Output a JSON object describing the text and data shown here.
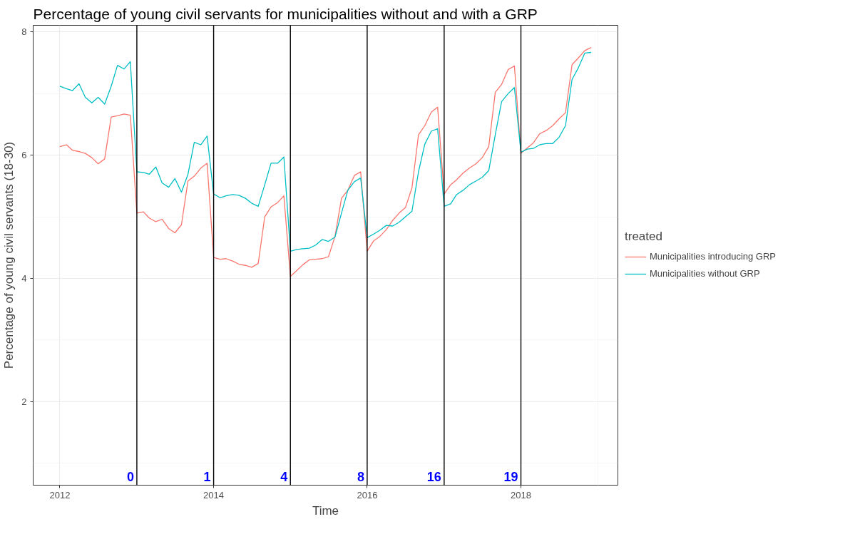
{
  "chart_data": {
    "type": "line",
    "title": "Percentage of young civil servants for municipalities without and with a GRP",
    "xlabel": "Time",
    "ylabel": "Percentage of young civil servants (18-30)",
    "legend_title": "treated",
    "legend": "right",
    "grid": true,
    "x": [
      "2012-01",
      "2012-02",
      "2012-03",
      "2012-04",
      "2012-05",
      "2012-06",
      "2012-07",
      "2012-08",
      "2012-09",
      "2012-10",
      "2012-11",
      "2012-12",
      "2013-01",
      "2013-02",
      "2013-03",
      "2013-04",
      "2013-05",
      "2013-06",
      "2013-07",
      "2013-08",
      "2013-09",
      "2013-10",
      "2013-11",
      "2013-12",
      "2014-01",
      "2014-02",
      "2014-03",
      "2014-04",
      "2014-05",
      "2014-06",
      "2014-07",
      "2014-08",
      "2014-09",
      "2014-10",
      "2014-11",
      "2014-12",
      "2015-01",
      "2015-02",
      "2015-03",
      "2015-04",
      "2015-05",
      "2015-06",
      "2015-07",
      "2015-08",
      "2015-09",
      "2015-10",
      "2015-11",
      "2015-12",
      "2016-01",
      "2016-02",
      "2016-03",
      "2016-04",
      "2016-05",
      "2016-06",
      "2016-07",
      "2016-08",
      "2016-09",
      "2016-10",
      "2016-11",
      "2016-12",
      "2017-01",
      "2017-02",
      "2017-03",
      "2017-04",
      "2017-05",
      "2017-06",
      "2017-07",
      "2017-08",
      "2017-09",
      "2017-10",
      "2017-11",
      "2017-12",
      "2018-01",
      "2018-02",
      "2018-03",
      "2018-04",
      "2018-05",
      "2018-06",
      "2018-07",
      "2018-08",
      "2018-09",
      "2018-10",
      "2018-11",
      "2018-12"
    ],
    "series": [
      {
        "name": "Municipalities introducing GRP",
        "color": "#f8766d",
        "values": [
          6.14,
          6.17,
          6.08,
          6.06,
          6.03,
          5.96,
          5.86,
          5.94,
          6.62,
          6.64,
          6.67,
          6.65,
          5.06,
          5.08,
          4.98,
          4.92,
          4.96,
          4.81,
          4.74,
          4.87,
          5.58,
          5.66,
          5.79,
          5.87,
          4.34,
          4.31,
          4.32,
          4.28,
          4.23,
          4.21,
          4.18,
          4.24,
          5.0,
          5.16,
          5.23,
          5.34,
          4.03,
          4.13,
          4.22,
          4.3,
          4.31,
          4.32,
          4.35,
          4.68,
          5.3,
          5.43,
          5.67,
          5.73,
          4.44,
          4.61,
          4.68,
          4.79,
          4.94,
          5.06,
          5.15,
          5.47,
          6.33,
          6.48,
          6.7,
          6.78,
          5.37,
          5.52,
          5.6,
          5.71,
          5.79,
          5.86,
          5.96,
          6.14,
          7.02,
          7.15,
          7.39,
          7.45,
          6.03,
          6.12,
          6.2,
          6.35,
          6.4,
          6.48,
          6.59,
          6.69,
          7.47,
          7.58,
          7.7,
          7.75
        ]
      },
      {
        "name": "Municipalities without GRP",
        "color": "#00bfc4",
        "values": [
          7.12,
          7.08,
          7.05,
          7.16,
          6.94,
          6.85,
          6.94,
          6.83,
          7.12,
          7.46,
          7.4,
          7.52,
          5.73,
          5.72,
          5.69,
          5.81,
          5.55,
          5.48,
          5.62,
          5.4,
          5.69,
          6.21,
          6.17,
          6.31,
          5.37,
          5.31,
          5.34,
          5.36,
          5.35,
          5.3,
          5.22,
          5.17,
          5.52,
          5.87,
          5.87,
          5.97,
          4.44,
          4.47,
          4.48,
          4.49,
          4.54,
          4.63,
          4.6,
          4.67,
          5.06,
          5.43,
          5.57,
          5.63,
          4.66,
          4.72,
          4.78,
          4.86,
          4.85,
          4.91,
          5.0,
          5.09,
          5.73,
          6.18,
          6.39,
          6.43,
          5.17,
          5.21,
          5.36,
          5.43,
          5.52,
          5.58,
          5.64,
          5.75,
          6.33,
          6.87,
          7.0,
          7.1,
          6.05,
          6.1,
          6.11,
          6.17,
          6.19,
          6.19,
          6.29,
          6.48,
          7.23,
          7.42,
          7.66,
          7.67
        ]
      }
    ],
    "xlim": [
      "2011-08-27",
      "2019-04-07"
    ],
    "xticks": [
      {
        "value": "2012-01-01",
        "label": "2012"
      },
      {
        "value": "2014-01-01",
        "label": "2014"
      },
      {
        "value": "2016-01-01",
        "label": "2016"
      },
      {
        "value": "2018-01-01",
        "label": "2018"
      }
    ],
    "ylim": [
      0.64,
      8.11
    ],
    "yticks": [
      2,
      4,
      6,
      8
    ],
    "ref_lines": [
      {
        "axis": "x",
        "value": "2013-01-01",
        "label": "0",
        "color": "#000000"
      },
      {
        "axis": "x",
        "value": "2014-01-01",
        "label": "1",
        "color": "#000000"
      },
      {
        "axis": "x",
        "value": "2015-01-01",
        "label": "4",
        "color": "#000000"
      },
      {
        "axis": "x",
        "value": "2016-01-01",
        "label": "8",
        "color": "#000000"
      },
      {
        "axis": "x",
        "value": "2017-01-01",
        "label": "16",
        "color": "#000000"
      },
      {
        "axis": "x",
        "value": "2018-01-01",
        "label": "19",
        "color": "#000000"
      }
    ]
  }
}
